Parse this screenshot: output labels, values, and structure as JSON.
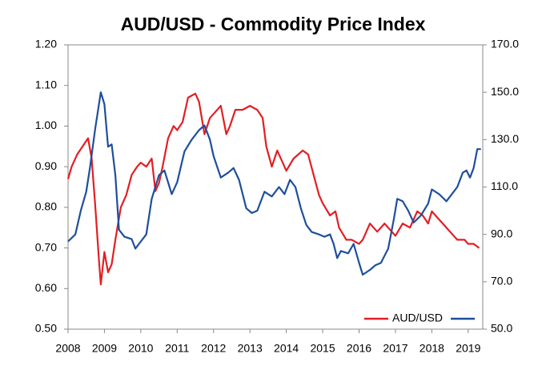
{
  "chart_data": {
    "type": "line",
    "title": "AUD/USD - Commodity Price Index",
    "xlim": [
      2008,
      2019.4
    ],
    "xticks": [
      2008,
      2009,
      2010,
      2011,
      2012,
      2013,
      2014,
      2015,
      2016,
      2017,
      2018,
      2019
    ],
    "ylim": [
      0.5,
      1.2
    ],
    "yticks": [
      {
        "value": 0.5,
        "label": "0.50"
      },
      {
        "value": 0.6,
        "label": "0.60"
      },
      {
        "value": 0.7,
        "label": "0.70"
      },
      {
        "value": 0.8,
        "label": "0.80"
      },
      {
        "value": 0.9,
        "label": "0.90"
      },
      {
        "value": 1.0,
        "label": "1.00"
      },
      {
        "value": 1.1,
        "label": "1.10"
      },
      {
        "value": 1.2,
        "label": "1.20"
      }
    ],
    "y2lim": [
      50,
      170
    ],
    "y2ticks": [
      {
        "value": 50,
        "label": "50.0"
      },
      {
        "value": 70,
        "label": "70.0"
      },
      {
        "value": 90,
        "label": "90.0"
      },
      {
        "value": 110,
        "label": "110.0"
      },
      {
        "value": 130,
        "label": "130.0"
      },
      {
        "value": 150,
        "label": "150.0"
      },
      {
        "value": 170,
        "label": "170.0"
      }
    ],
    "grid": false,
    "legend": "bottom-right",
    "series": [
      {
        "name": "AUD/USD",
        "color": "#e31e24",
        "axis": "y",
        "x": [
          2008.0,
          2008.1,
          2008.25,
          2008.4,
          2008.55,
          2008.65,
          2008.75,
          2008.85,
          2008.9,
          2009.0,
          2009.1,
          2009.2,
          2009.3,
          2009.45,
          2009.6,
          2009.75,
          2009.9,
          2010.0,
          2010.15,
          2010.3,
          2010.4,
          2010.5,
          2010.6,
          2010.75,
          2010.9,
          2011.0,
          2011.15,
          2011.3,
          2011.5,
          2011.6,
          2011.75,
          2011.9,
          2012.0,
          2012.2,
          2012.35,
          2012.45,
          2012.6,
          2012.8,
          2013.0,
          2013.2,
          2013.35,
          2013.45,
          2013.6,
          2013.75,
          2013.9,
          2014.0,
          2014.2,
          2014.45,
          2014.6,
          2014.75,
          2014.9,
          2015.0,
          2015.2,
          2015.35,
          2015.45,
          2015.65,
          2015.8,
          2016.0,
          2016.1,
          2016.3,
          2016.5,
          2016.7,
          2016.9,
          2017.0,
          2017.2,
          2017.4,
          2017.6,
          2017.75,
          2017.9,
          2018.0,
          2018.1,
          2018.3,
          2018.5,
          2018.7,
          2018.9,
          2019.0,
          2019.15,
          2019.3
        ],
        "values": [
          0.87,
          0.9,
          0.93,
          0.95,
          0.97,
          0.92,
          0.8,
          0.67,
          0.61,
          0.69,
          0.64,
          0.66,
          0.72,
          0.8,
          0.83,
          0.88,
          0.9,
          0.91,
          0.9,
          0.92,
          0.84,
          0.86,
          0.9,
          0.97,
          1.0,
          0.99,
          1.01,
          1.07,
          1.08,
          1.06,
          0.98,
          1.02,
          1.03,
          1.05,
          0.98,
          1.0,
          1.04,
          1.04,
          1.05,
          1.04,
          1.02,
          0.95,
          0.9,
          0.94,
          0.91,
          0.89,
          0.92,
          0.94,
          0.93,
          0.88,
          0.83,
          0.81,
          0.78,
          0.79,
          0.75,
          0.72,
          0.72,
          0.71,
          0.72,
          0.76,
          0.74,
          0.76,
          0.74,
          0.73,
          0.76,
          0.75,
          0.79,
          0.78,
          0.76,
          0.79,
          0.78,
          0.76,
          0.74,
          0.72,
          0.72,
          0.71,
          0.71,
          0.7
        ]
      },
      {
        "color": "#1f4e9c",
        "axis": "y2",
        "x": [
          2008.0,
          2008.2,
          2008.35,
          2008.5,
          2008.6,
          2008.75,
          2008.9,
          2009.0,
          2009.1,
          2009.2,
          2009.3,
          2009.4,
          2009.55,
          2009.75,
          2009.85,
          2010.0,
          2010.15,
          2010.3,
          2010.5,
          2010.65,
          2010.85,
          2011.0,
          2011.2,
          2011.4,
          2011.6,
          2011.75,
          2011.9,
          2012.0,
          2012.2,
          2012.4,
          2012.55,
          2012.7,
          2012.9,
          2013.05,
          2013.2,
          2013.4,
          2013.6,
          2013.8,
          2013.95,
          2014.1,
          2014.25,
          2014.4,
          2014.55,
          2014.7,
          2014.9,
          2015.05,
          2015.2,
          2015.3,
          2015.4,
          2015.5,
          2015.7,
          2015.85,
          2016.0,
          2016.1,
          2016.3,
          2016.45,
          2016.6,
          2016.8,
          2016.95,
          2017.05,
          2017.2,
          2017.35,
          2017.5,
          2017.7,
          2017.9,
          2018.0,
          2018.2,
          2018.4,
          2018.55,
          2018.7,
          2018.85,
          2018.95,
          2019.05,
          2019.15,
          2019.25,
          2019.35
        ],
        "values": [
          87,
          90,
          100,
          108,
          118,
          135,
          150,
          145,
          127,
          128,
          115,
          92,
          89,
          88,
          84,
          87,
          90,
          105,
          115,
          117,
          107,
          112,
          125,
          130,
          134,
          136,
          130,
          123,
          114,
          116,
          118,
          113,
          101,
          99,
          100,
          108,
          106,
          110,
          107,
          113,
          110,
          101,
          94,
          91,
          90,
          89,
          90,
          86,
          80,
          83,
          82,
          86,
          78,
          73,
          75,
          77,
          78,
          84,
          96,
          105,
          104,
          100,
          95,
          98,
          103,
          109,
          107,
          104,
          107,
          110,
          116,
          117,
          114,
          118,
          126,
          126
        ]
      }
    ]
  }
}
